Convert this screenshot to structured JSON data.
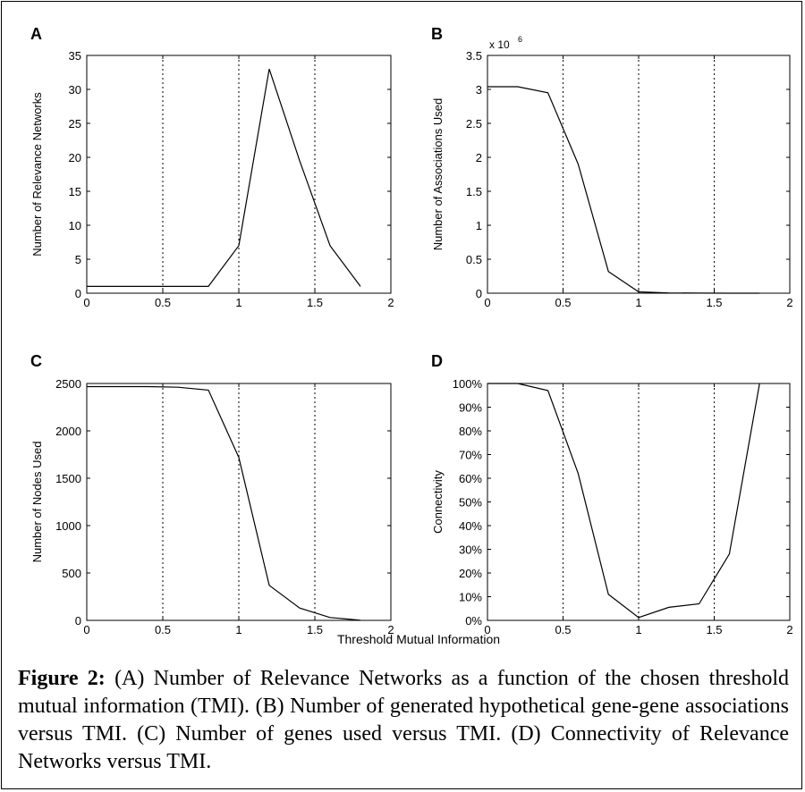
{
  "shared_xlabel": "Threshold Mutual Information",
  "caption": {
    "label": "Figure 2:",
    "text": "(A) Number of Relevance Networks as a function of the chosen threshold mutual information (TMI). (B) Number of generated hypothetical gene-gene associations versus TMI. (C) Number of genes used versus TMI. (D) Connectivity of Relevance Networks versus TMI."
  },
  "chart_data": [
    {
      "panel": "A",
      "type": "line",
      "xlabel": "",
      "ylabel": "Number of Relevance Networks",
      "xlim": [
        0,
        2
      ],
      "ylim": [
        0,
        35
      ],
      "xticks": [
        0,
        0.5,
        1,
        1.5,
        2
      ],
      "xtick_labels": [
        "0",
        "0.5",
        "1",
        "1.5",
        "2"
      ],
      "yticks": [
        0,
        5,
        10,
        15,
        20,
        25,
        30,
        35
      ],
      "ytick_labels": [
        "0",
        "5",
        "10",
        "15",
        "20",
        "25",
        "30",
        "35"
      ],
      "vlines": [
        0.5,
        1,
        1.5
      ],
      "x": [
        0,
        0.2,
        0.4,
        0.6,
        0.8,
        1.0,
        1.2,
        1.4,
        1.6,
        1.8
      ],
      "y": [
        1,
        1,
        1,
        1,
        1,
        7,
        33,
        19.5,
        7,
        1
      ]
    },
    {
      "panel": "B",
      "type": "line",
      "xlabel": "",
      "ylabel": "Number of Associations Used",
      "y_multiplier_label": "x 10",
      "y_multiplier_exp": "6",
      "xlim": [
        0,
        2
      ],
      "ylim": [
        0,
        3.5
      ],
      "xticks": [
        0,
        0.5,
        1,
        1.5,
        2
      ],
      "xtick_labels": [
        "0",
        "0.5",
        "1",
        "1.5",
        "2"
      ],
      "yticks": [
        0,
        0.5,
        1,
        1.5,
        2,
        2.5,
        3,
        3.5
      ],
      "ytick_labels": [
        "0",
        "0.5",
        "1",
        "1.5",
        "2",
        "2.5",
        "3",
        "3.5"
      ],
      "vlines": [
        0.5,
        1,
        1.5
      ],
      "x": [
        0,
        0.2,
        0.4,
        0.6,
        0.8,
        1.0,
        1.2,
        1.4,
        1.6,
        1.8
      ],
      "y": [
        3.04,
        3.04,
        2.95,
        1.9,
        0.32,
        0.02,
        0.004,
        0.001,
        0.0003,
        0.0001
      ]
    },
    {
      "panel": "C",
      "type": "line",
      "xlabel": "",
      "ylabel": "Number of Nodes Used",
      "xlim": [
        0,
        2
      ],
      "ylim": [
        0,
        2500
      ],
      "xticks": [
        0,
        0.5,
        1,
        1.5,
        2
      ],
      "xtick_labels": [
        "0",
        "0.5",
        "1",
        "1.5",
        "2"
      ],
      "yticks": [
        0,
        500,
        1000,
        1500,
        2000,
        2500
      ],
      "ytick_labels": [
        "0",
        "500",
        "1000",
        "1500",
        "2000",
        "2500"
      ],
      "vlines": [
        0.5,
        1,
        1.5
      ],
      "x": [
        0,
        0.2,
        0.4,
        0.6,
        0.8,
        1.0,
        1.2,
        1.4,
        1.6,
        1.8
      ],
      "y": [
        2467,
        2467,
        2467,
        2460,
        2430,
        1720,
        370,
        130,
        30,
        2
      ]
    },
    {
      "panel": "D",
      "type": "line",
      "xlabel": "",
      "ylabel": "Connectivity",
      "xlim": [
        0,
        2
      ],
      "ylim": [
        0,
        100
      ],
      "xticks": [
        0,
        0.5,
        1,
        1.5,
        2
      ],
      "xtick_labels": [
        "0",
        "0.5",
        "1",
        "1.5",
        "2"
      ],
      "yticks": [
        0,
        10,
        20,
        30,
        40,
        50,
        60,
        70,
        80,
        90,
        100
      ],
      "ytick_labels": [
        "0%",
        "10%",
        "20%",
        "30%",
        "40%",
        "50%",
        "60%",
        "70%",
        "80%",
        "90%",
        "100%"
      ],
      "vlines": [
        0.5,
        1,
        1.5
      ],
      "x": [
        0,
        0.2,
        0.4,
        0.6,
        0.8,
        1.0,
        1.2,
        1.4,
        1.6,
        1.8
      ],
      "y": [
        100,
        100,
        97,
        62,
        11,
        1.2,
        5.5,
        7,
        28,
        100
      ]
    }
  ]
}
